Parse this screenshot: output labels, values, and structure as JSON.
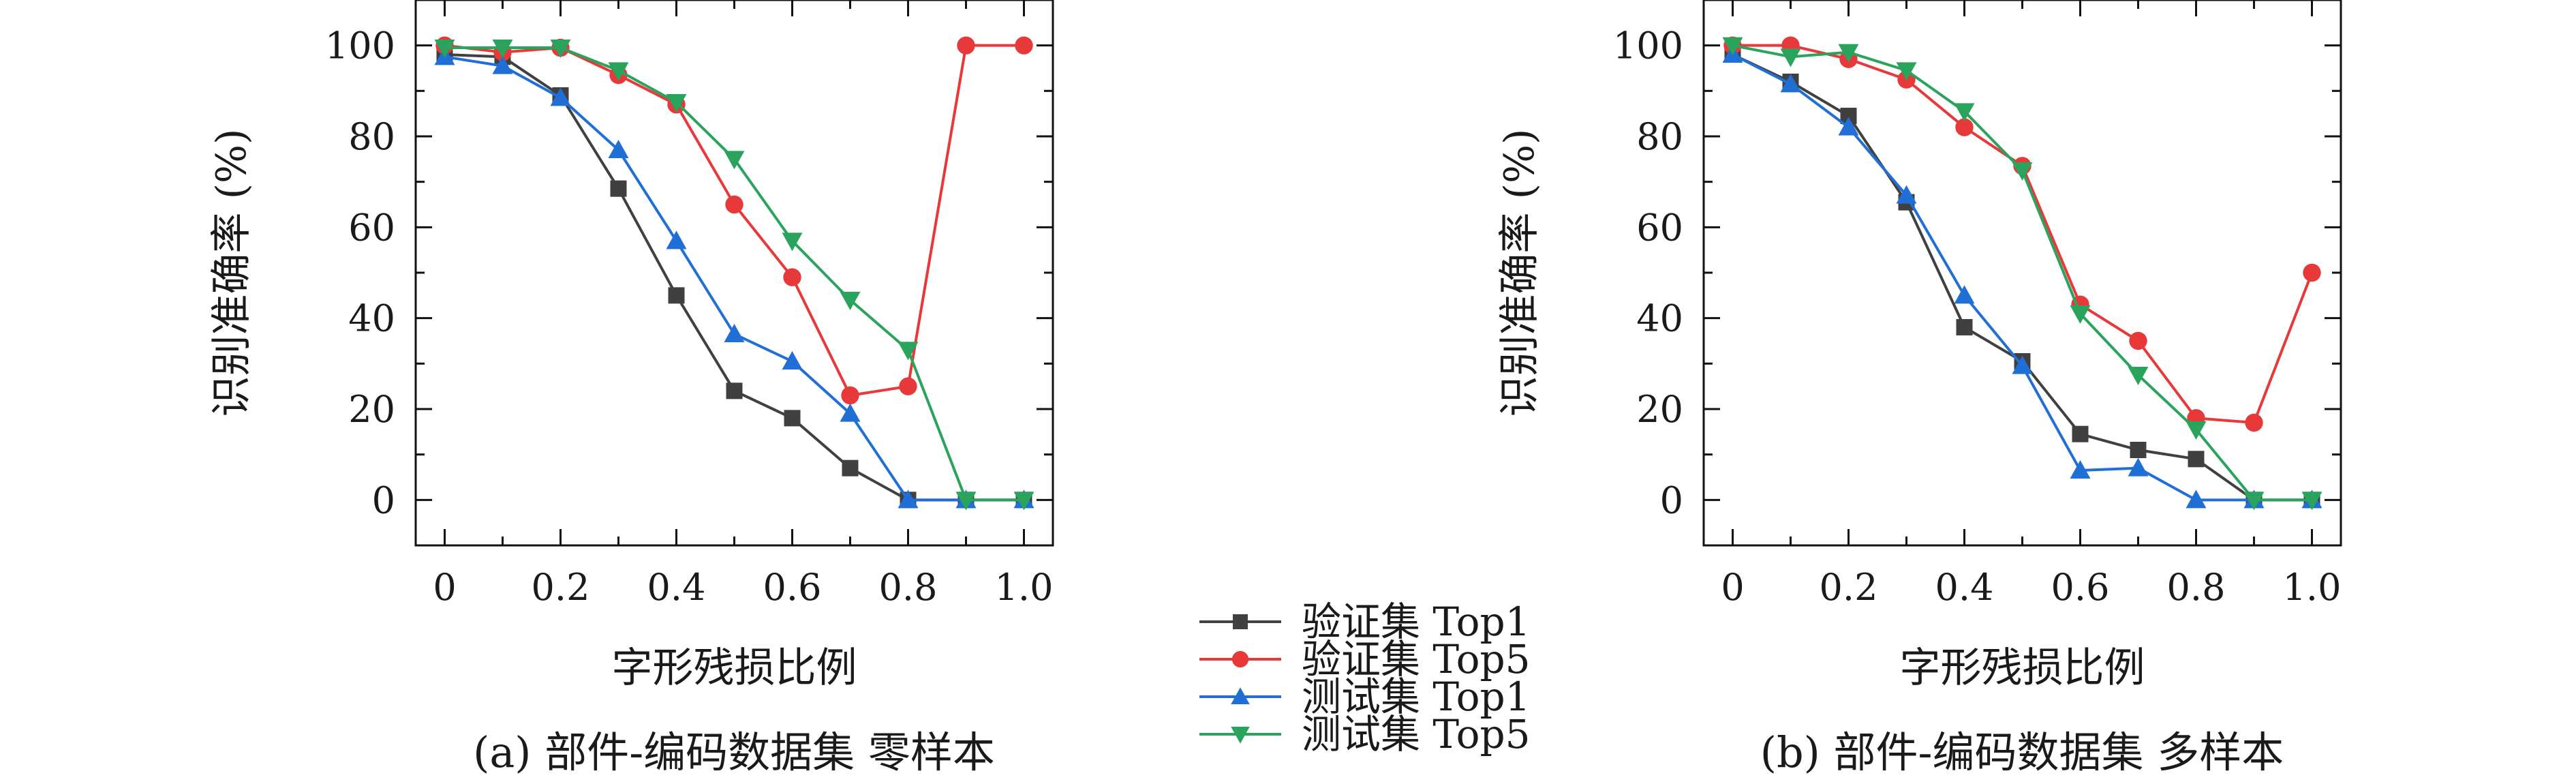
{
  "legend": {
    "entries": [
      {
        "label": "验证集 Top1",
        "color": "#404040",
        "marker": "square"
      },
      {
        "label": "验证集 Top5",
        "color": "#e8393a",
        "marker": "circle"
      },
      {
        "label": "测试集 Top1",
        "color": "#1f6fd6",
        "marker": "triangle-up"
      },
      {
        "label": "测试集 Top5",
        "color": "#2aa45c",
        "marker": "triangle-down"
      }
    ]
  },
  "chart_data": [
    {
      "type": "line",
      "caption": "(a) 部件-编码数据集 零样本",
      "xlabel": "字形残损比例",
      "ylabel": "识别准确率 (%)",
      "x": [
        0,
        0.1,
        0.2,
        0.3,
        0.4,
        0.5,
        0.6,
        0.7,
        0.8,
        0.9,
        1.0
      ],
      "xlim": [
        -0.05,
        1.05
      ],
      "ylim": [
        -10,
        110
      ],
      "xticks": [
        "0",
        "0.2",
        "0.4",
        "0.6",
        "0.8",
        "1.0"
      ],
      "yticks": [
        "0",
        "20",
        "40",
        "60",
        "80",
        "100"
      ],
      "series": [
        {
          "name": "验证集 Top1",
          "values": [
            98,
            97.5,
            89,
            68.5,
            45,
            24,
            18,
            7,
            0,
            0,
            0
          ]
        },
        {
          "name": "验证集 Top5",
          "values": [
            100,
            98.5,
            99.5,
            93.5,
            87,
            65,
            49,
            23,
            25,
            100,
            100
          ]
        },
        {
          "name": "测试集 Top1",
          "values": [
            97.5,
            95.5,
            88.5,
            77,
            57,
            36.5,
            30.5,
            19,
            0,
            0,
            0
          ]
        },
        {
          "name": "测试集 Top5",
          "values": [
            99.5,
            99.5,
            99.5,
            94.5,
            87.5,
            75,
            57,
            44,
            33,
            0,
            0
          ]
        }
      ]
    },
    {
      "type": "line",
      "caption": "(b) 部件-编码数据集 多样本",
      "xlabel": "字形残损比例",
      "ylabel": "识别准确率 (%)",
      "x": [
        0,
        0.1,
        0.2,
        0.3,
        0.4,
        0.5,
        0.6,
        0.7,
        0.8,
        0.9,
        1.0
      ],
      "xlim": [
        -0.05,
        1.05
      ],
      "ylim": [
        -10,
        110
      ],
      "xticks": [
        "0",
        "0.2",
        "0.4",
        "0.6",
        "0.8",
        "1.0"
      ],
      "yticks": [
        "0",
        "20",
        "40",
        "60",
        "80",
        "100"
      ],
      "series": [
        {
          "name": "验证集 Top1",
          "values": [
            98,
            92,
            84.5,
            65.5,
            38,
            30.5,
            14.5,
            11,
            9,
            0,
            0
          ]
        },
        {
          "name": "验证集 Top5",
          "values": [
            100,
            100,
            97,
            92.5,
            82,
            73.5,
            43,
            35,
            18,
            17,
            50
          ]
        },
        {
          "name": "测试集 Top1",
          "values": [
            98,
            91.5,
            82,
            67,
            45,
            29.5,
            6.5,
            7,
            0,
            0,
            0
          ]
        },
        {
          "name": "测试集 Top5",
          "values": [
            100,
            97.5,
            98.5,
            94.5,
            85.5,
            72.5,
            41,
            27.5,
            15.5,
            0,
            0
          ]
        }
      ]
    }
  ]
}
